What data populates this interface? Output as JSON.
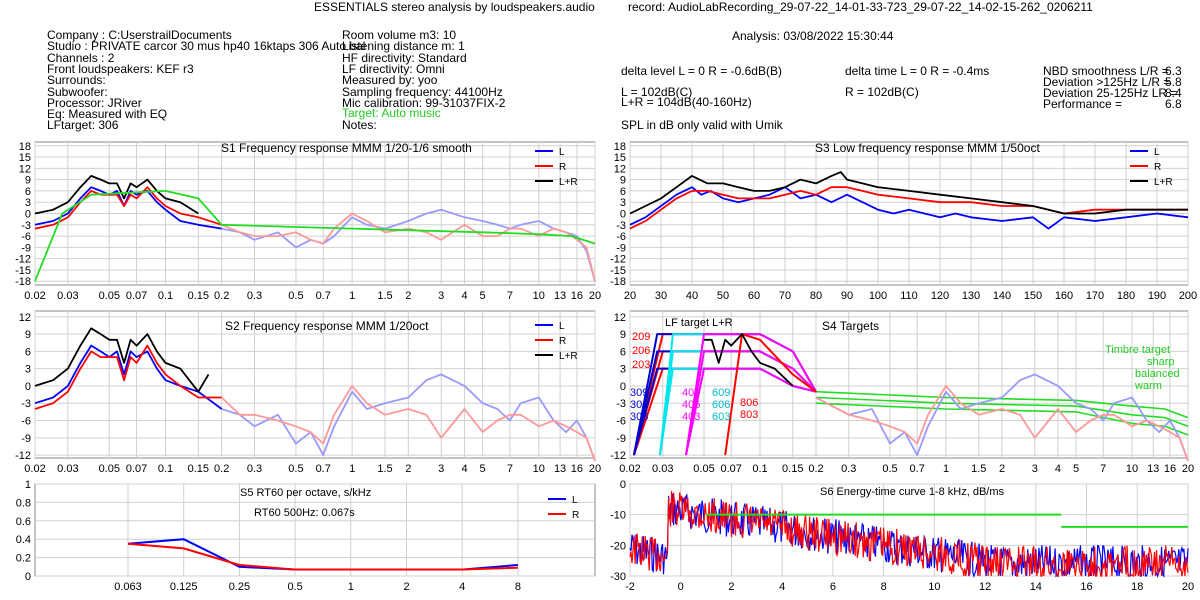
{
  "header": {
    "title": "ESSENTIALS stereo analysis by loudspeakers.audio",
    "record": "record: AudioLabRecording_29-07-22_14-01-33-723_29-07-22_14-02-15-262_0206211",
    "analysis": "Analysis: 03/08/2022 15:30:44"
  },
  "info_left": [
    "Company : C:UserstrailDocuments",
    "Studio : PRIVATE carcor 30 mus hp40 16ktaps 306 Auto bal",
    "Channels : 2",
    "Front loudspeakers: KEF r3",
    "Surrounds:",
    "Subwoofer:",
    "Processor: JRiver",
    "Eq: Measured with EQ",
    "LFtarget: 306"
  ],
  "info_mid": [
    "Room volume m3: 10",
    "Listening distance m: 1",
    "HF directivity: Standard",
    "LF directivity: Omni",
    "Measured by: yoo",
    "Sampling frequency: 44100Hz",
    "Mic calibration: 99-31037FIX-2"
  ],
  "info_mid_target": "Target: Auto music",
  "info_mid_notes": "Notes:",
  "stats": {
    "delta_level": "delta level L = 0  R = -0.6dB(B)",
    "delta_time": "delta time  L = 0  R = -0.4ms",
    "l_spl": "L =      102dB(C)",
    "lr_spl": "L+R = 104dB(40-160Hz)",
    "r_spl": "R =      102dB(C)",
    "spl_note": "SPL in dB only valid with Umik",
    "nbd_label": "NBD smoothness L/R =",
    "nbd_value": "6.3",
    "dev125_label": "Deviation >125Hz L/R =",
    "dev125_value": "5.8",
    "dev25_label": "Deviation 25-125Hz LR =",
    "dev25_value": "8.4",
    "perf_label": "Performance =",
    "perf_value": "6.8"
  },
  "colors": {
    "L": "#0000ff",
    "R": "#ff0000",
    "LR": "#000000",
    "target": "#22dd22",
    "grid": "#d0d0d0",
    "lightL": "#9999ff",
    "lightR": "#ff9999",
    "cyan": "#00e5ee",
    "magenta": "#ff00ff"
  },
  "chart_data": [
    {
      "id": "S1",
      "type": "line",
      "title": "S1  Frequency response MMM 1/20-1/6 smooth",
      "xscale": "log",
      "xlim": [
        0.02,
        20
      ],
      "ylim": [
        -19,
        19
      ],
      "x_ticks": [
        "0.02",
        "0.03",
        "0.05",
        "0.07",
        "0.1",
        "0.15",
        "0.2",
        "0.3",
        "0.5",
        "0.7",
        "1",
        "1.5",
        "2",
        "3",
        "4",
        "5",
        "7",
        "10",
        "13",
        "16",
        "20"
      ],
      "y_ticks": [
        "18",
        "15",
        "12",
        "9",
        "6",
        "3",
        "0",
        "-3",
        "-6",
        "-9",
        "-12",
        "-15",
        "-18"
      ],
      "legend": [
        "L",
        "R",
        "L+R"
      ],
      "series": [
        {
          "name": "L",
          "x": [
            0.02,
            0.025,
            0.03,
            0.035,
            0.04,
            0.045,
            0.05,
            0.055,
            0.06,
            0.065,
            0.07,
            0.08,
            0.09,
            0.1,
            0.12,
            0.15,
            0.2,
            0.25,
            0.3,
            0.4,
            0.5,
            0.6,
            0.7,
            0.8,
            1,
            1.2,
            1.5,
            2,
            2.5,
            3,
            4,
            5,
            6,
            7,
            8,
            10,
            12,
            14,
            16,
            18,
            20
          ],
          "y": [
            -3,
            -2,
            0,
            4,
            7,
            6,
            5,
            6,
            2,
            6,
            5,
            6,
            3,
            1,
            -2,
            -3,
            -4,
            -5,
            -7,
            -5,
            -9,
            -7,
            -8,
            -6,
            -1,
            -3,
            -4,
            -2,
            0,
            1,
            -1,
            -2,
            -3,
            -4,
            -3,
            -2,
            -4,
            -5,
            -6,
            -10,
            -18
          ]
        },
        {
          "name": "R",
          "x": [
            0.02,
            0.025,
            0.03,
            0.035,
            0.04,
            0.045,
            0.05,
            0.055,
            0.06,
            0.065,
            0.07,
            0.08,
            0.09,
            0.1,
            0.12,
            0.15,
            0.2,
            0.25,
            0.3,
            0.4,
            0.5,
            0.6,
            0.7,
            0.8,
            1,
            1.2,
            1.5,
            2,
            2.5,
            3,
            4,
            5,
            6,
            7,
            8,
            10,
            12,
            14,
            16,
            18,
            20
          ],
          "y": [
            -4,
            -3,
            -1,
            3,
            6,
            5,
            5,
            5,
            2,
            5,
            4,
            7,
            4,
            2,
            0,
            -1,
            -3,
            -5,
            -6,
            -6,
            -5,
            -7,
            -8,
            -4,
            0,
            -2,
            -5,
            -4,
            -5,
            -7,
            -3,
            -6,
            -6,
            -4,
            -4,
            -6,
            -4,
            -5,
            -7,
            -9,
            -18
          ]
        },
        {
          "name": "L+R",
          "x": [
            0.02,
            0.025,
            0.03,
            0.035,
            0.04,
            0.045,
            0.05,
            0.055,
            0.06,
            0.065,
            0.07,
            0.08,
            0.09,
            0.1,
            0.12,
            0.15
          ],
          "y": [
            0,
            1,
            3,
            7,
            10,
            9,
            8,
            8,
            4,
            8,
            7,
            9,
            6,
            4,
            3,
            0
          ]
        },
        {
          "name": "target",
          "x": [
            0.02,
            0.028,
            0.04,
            0.1,
            0.15,
            0.2,
            1,
            5,
            10,
            15,
            20
          ],
          "y": [
            -18,
            0,
            5,
            6,
            4,
            -3,
            -4,
            -5,
            -5.5,
            -6,
            -8
          ]
        }
      ]
    },
    {
      "id": "S2",
      "type": "line",
      "title": "S2  Frequency response MMM 1/20oct",
      "xscale": "log",
      "xlim": [
        0.02,
        20
      ],
      "ylim": [
        -12.5,
        13
      ],
      "x_ticks": [
        "0.02",
        "0.03",
        "0.05",
        "0.07",
        "0.1",
        "0.15",
        "0.2",
        "0.3",
        "0.5",
        "0.7",
        "1",
        "1.5",
        "2",
        "3",
        "4",
        "5",
        "7",
        "10",
        "13",
        "16",
        "20"
      ],
      "y_ticks": [
        "12",
        "9",
        "6",
        "3",
        "0",
        "-3",
        "-6",
        "-9",
        "-12"
      ],
      "legend": [
        "L",
        "R",
        "L+R"
      ],
      "series": [
        {
          "name": "L",
          "x": [
            0.02,
            0.025,
            0.03,
            0.035,
            0.04,
            0.045,
            0.05,
            0.055,
            0.06,
            0.065,
            0.07,
            0.08,
            0.09,
            0.1,
            0.12,
            0.15,
            0.2,
            0.25,
            0.3,
            0.4,
            0.5,
            0.6,
            0.7,
            0.8,
            1,
            1.2,
            1.5,
            2,
            2.5,
            3,
            4,
            5,
            6,
            7,
            8,
            10,
            12,
            14,
            16,
            18,
            20
          ],
          "y": [
            -3,
            -2,
            0,
            4,
            7,
            6,
            5,
            6,
            2,
            6,
            5,
            6,
            3,
            1,
            0,
            -1,
            -4,
            -5,
            -7,
            -5,
            -10,
            -8,
            -12,
            -7,
            -1,
            -4,
            -3,
            -2,
            1,
            2,
            0,
            -3,
            -4,
            -6,
            -3,
            -2,
            -6,
            -8,
            -6,
            -9,
            -13
          ]
        },
        {
          "name": "R",
          "x": [
            0.02,
            0.025,
            0.03,
            0.035,
            0.04,
            0.045,
            0.05,
            0.055,
            0.06,
            0.065,
            0.07,
            0.08,
            0.09,
            0.1,
            0.12,
            0.15,
            0.2,
            0.25,
            0.3,
            0.4,
            0.5,
            0.6,
            0.7,
            0.8,
            1,
            1.2,
            1.5,
            2,
            2.5,
            3,
            4,
            5,
            6,
            7,
            8,
            10,
            12,
            14,
            16,
            18,
            20
          ],
          "y": [
            -4,
            -3,
            -1,
            3,
            6,
            5,
            5,
            5,
            1,
            5,
            4,
            7,
            4,
            2,
            0,
            -2,
            -2,
            -5,
            -5,
            -6,
            -7,
            -8,
            -10,
            -5,
            0,
            -3,
            -5,
            -4,
            -5,
            -9,
            -4,
            -8,
            -6,
            -5,
            -5,
            -7,
            -6,
            -7,
            -8,
            -9,
            -13
          ]
        },
        {
          "name": "L+R",
          "x": [
            0.02,
            0.025,
            0.03,
            0.035,
            0.04,
            0.045,
            0.05,
            0.055,
            0.06,
            0.065,
            0.07,
            0.08,
            0.09,
            0.1,
            0.12,
            0.15,
            0.17
          ],
          "y": [
            0,
            1,
            3,
            7,
            10,
            9,
            8,
            8,
            4,
            8,
            7,
            9,
            6,
            4,
            3,
            -1,
            2
          ]
        }
      ]
    },
    {
      "id": "S3",
      "type": "line",
      "title": "S3  Low frequency response MMM 1/50oct",
      "xlim": [
        20,
        200
      ],
      "ylim": [
        -19,
        19
      ],
      "x_ticks": [
        "20",
        "30",
        "40",
        "50",
        "60",
        "70",
        "80",
        "90",
        "100",
        "110",
        "120",
        "130",
        "140",
        "150",
        "160",
        "170",
        "180",
        "190",
        "200"
      ],
      "y_ticks": [
        "18",
        "15",
        "12",
        "9",
        "6",
        "3",
        "0",
        "-3",
        "-6",
        "-9",
        "-12",
        "-15",
        "-18"
      ],
      "legend": [
        "L",
        "R",
        "L+R"
      ],
      "series": [
        {
          "name": "L",
          "x": [
            20,
            25,
            30,
            35,
            40,
            43,
            46,
            50,
            55,
            60,
            65,
            70,
            75,
            80,
            85,
            90,
            95,
            100,
            105,
            110,
            115,
            120,
            125,
            130,
            140,
            150,
            155,
            160,
            170,
            180,
            190,
            200
          ],
          "y": [
            -3,
            -1,
            2,
            5,
            7,
            5,
            6,
            4,
            3,
            4,
            5,
            7,
            4,
            5,
            3,
            5,
            3,
            1,
            0,
            1,
            0,
            -1,
            0,
            -1,
            -2,
            -1,
            -4,
            -1,
            -2,
            -1,
            0,
            -1
          ]
        },
        {
          "name": "R",
          "x": [
            20,
            25,
            30,
            35,
            40,
            45,
            50,
            55,
            60,
            65,
            70,
            75,
            80,
            85,
            90,
            95,
            100,
            110,
            120,
            130,
            140,
            150,
            160,
            170,
            180,
            190,
            200
          ],
          "y": [
            -4,
            -2,
            1,
            4,
            6,
            6,
            5,
            4,
            4,
            4,
            5,
            6,
            5,
            7,
            7,
            6,
            5,
            4,
            3,
            3,
            2,
            2,
            0,
            1,
            1,
            1,
            1
          ]
        },
        {
          "name": "L+R",
          "x": [
            20,
            25,
            30,
            35,
            40,
            45,
            50,
            55,
            60,
            65,
            70,
            75,
            80,
            85,
            88,
            90,
            95,
            100,
            110,
            120,
            130,
            140,
            150,
            160,
            170,
            180,
            190,
            200
          ],
          "y": [
            0,
            2,
            4,
            7,
            10,
            8,
            8,
            7,
            6,
            6,
            7,
            9,
            8,
            10,
            11,
            9,
            8,
            7,
            6,
            5,
            4,
            3,
            2,
            0,
            0,
            1,
            1,
            1
          ]
        }
      ]
    },
    {
      "id": "S4",
      "type": "line",
      "title": "S4 Targets",
      "subtitle": "LF target L+R",
      "xscale": "log",
      "xlim": [
        0.02,
        20
      ],
      "ylim": [
        -12.5,
        13
      ],
      "x_ticks": [
        "0.02",
        "0.03",
        "0.05",
        "0.07",
        "0.1",
        "0.15",
        "0.2",
        "0.3",
        "0.5",
        "0.7",
        "1",
        "1.5",
        "2",
        "3",
        "4",
        "5",
        "7",
        "10",
        "13",
        "16",
        "20"
      ],
      "y_ticks": [
        "12",
        "9",
        "6",
        "3",
        "0",
        "-3",
        "-6",
        "-9",
        "-12"
      ],
      "timbre_labels": [
        "Timbre target",
        "sharp",
        "balanced",
        "warm"
      ],
      "lf_target_labels": {
        "red_top": [
          "209",
          "206",
          "203"
        ],
        "blue_left": [
          "309",
          "306",
          "303"
        ],
        "magenta": [
          "409",
          "406",
          "403"
        ],
        "cyan": [
          "609",
          "606",
          "603"
        ],
        "red_right": [
          "806",
          "803"
        ]
      },
      "series": [
        {
          "name": "L",
          "x": [
            0.2,
            0.3,
            0.4,
            0.5,
            0.6,
            0.7,
            0.8,
            1,
            1.2,
            1.5,
            2,
            2.5,
            3,
            4,
            5,
            6,
            7,
            8,
            10,
            12,
            14,
            16,
            18,
            20
          ],
          "y": [
            -2,
            -5,
            -4,
            -10,
            -8,
            -12,
            -7,
            -1,
            -4,
            -3,
            -2,
            1,
            2,
            0,
            -3,
            -4,
            -6,
            -3,
            -2,
            -6,
            -8,
            -6,
            -9,
            -13
          ]
        },
        {
          "name": "R",
          "x": [
            0.2,
            0.3,
            0.4,
            0.5,
            0.6,
            0.7,
            0.8,
            1,
            1.2,
            1.5,
            2,
            2.5,
            3,
            4,
            5,
            6,
            7,
            8,
            10,
            12,
            14,
            16,
            18,
            20
          ],
          "y": [
            -2,
            -5,
            -6,
            -7,
            -8,
            -10,
            -5,
            0,
            -3,
            -5,
            -4,
            -5,
            -9,
            -4,
            -8,
            -6,
            -5,
            -5,
            -7,
            -6,
            -7,
            -8,
            -9,
            -13
          ]
        },
        {
          "name": "L+R",
          "x": [
            0.05,
            0.055,
            0.06,
            0.065,
            0.07,
            0.08,
            0.09,
            0.1,
            0.12,
            0.15
          ],
          "y": [
            8,
            8,
            4,
            8,
            7,
            9,
            6,
            4,
            3,
            0
          ]
        }
      ]
    },
    {
      "id": "S5",
      "type": "line",
      "title": "S5  RT60 per octave, s/kHz",
      "subtitle": "RT60 500Hz: 0.067s",
      "x_ticks": [
        "0.063",
        "0.125",
        "0.25",
        "0.5",
        "1",
        "2",
        "4",
        "8"
      ],
      "y_ticks": [
        "1",
        "0.8",
        "0.6",
        "0.4",
        "0.2",
        "0"
      ],
      "ylim": [
        0,
        1
      ],
      "legend": [
        "L",
        "R"
      ],
      "series": [
        {
          "name": "L",
          "values": [
            0.35,
            0.4,
            0.1,
            0.07,
            0.07,
            0.07,
            0.07,
            0.12
          ]
        },
        {
          "name": "R",
          "values": [
            0.35,
            0.3,
            0.12,
            0.07,
            0.07,
            0.07,
            0.07,
            0.09
          ]
        }
      ]
    },
    {
      "id": "S6",
      "type": "line",
      "title": "S6  Energy-time curve 1-8 kHz, dB/ms",
      "xlim": [
        -2,
        20
      ],
      "ylim": [
        -30,
        0
      ],
      "x_ticks": [
        "-2",
        "0",
        "2",
        "4",
        "6",
        "8",
        "10",
        "12",
        "14",
        "16",
        "18",
        "20"
      ],
      "y_ticks": [
        "0",
        "-10",
        "-20",
        "-30"
      ],
      "target_segments": [
        {
          "x": [
            1,
            15
          ],
          "y": [
            -10,
            -10
          ]
        },
        {
          "x": [
            15,
            20
          ],
          "y": [
            -14,
            -14
          ]
        }
      ]
    }
  ]
}
